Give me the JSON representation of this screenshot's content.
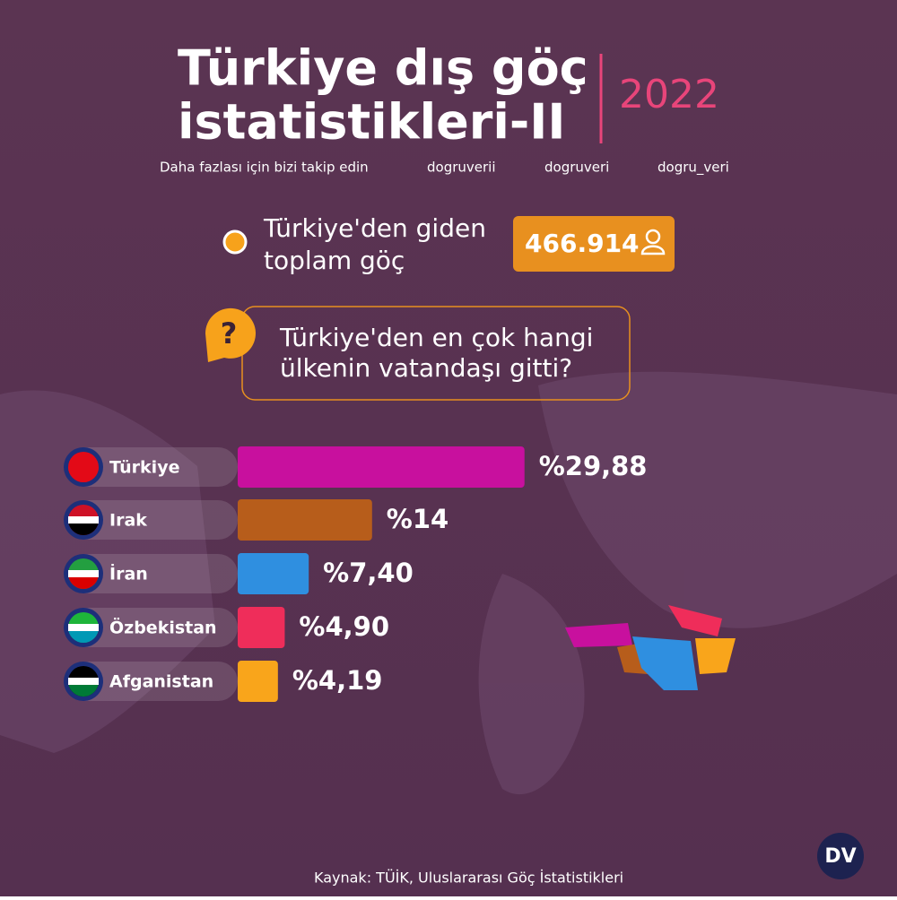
{
  "header": {
    "title": [
      "Türkiye dış göç",
      "istatistikleri-II"
    ],
    "year": "2022",
    "follow": "Daha fazlası için bizi takip edin",
    "facebook": "dogruverii",
    "instagram": "dogruveri",
    "twitter": "dogru_veri"
  },
  "total": {
    "label": [
      "Türkiye'den giden",
      "toplam göç"
    ],
    "value": "466.914"
  },
  "question": {
    "icon": "?",
    "text": [
      "Türkiye'den en çok hangi",
      "ülkenin vatandaşı gitti?"
    ]
  },
  "chart_data": {
    "type": "hbar",
    "categories": [
      "Türkiye",
      "Irak",
      "İran",
      "Özbekistan",
      "Afganistan"
    ],
    "values": [
      29.88,
      14,
      7.4,
      4.9,
      4.19
    ],
    "value_labels": [
      "%29,88",
      "%14",
      "%7,40",
      "%4,90",
      "%4,19"
    ],
    "colors": [
      "#c8109e",
      "#b75d1b",
      "#2f8fe0",
      "#ef2d5a",
      "#f9a51b"
    ]
  },
  "footer": {
    "source": "Kaynak: TÜİK, Uluslararası Göç İstatistikleri",
    "logo": "DV"
  }
}
